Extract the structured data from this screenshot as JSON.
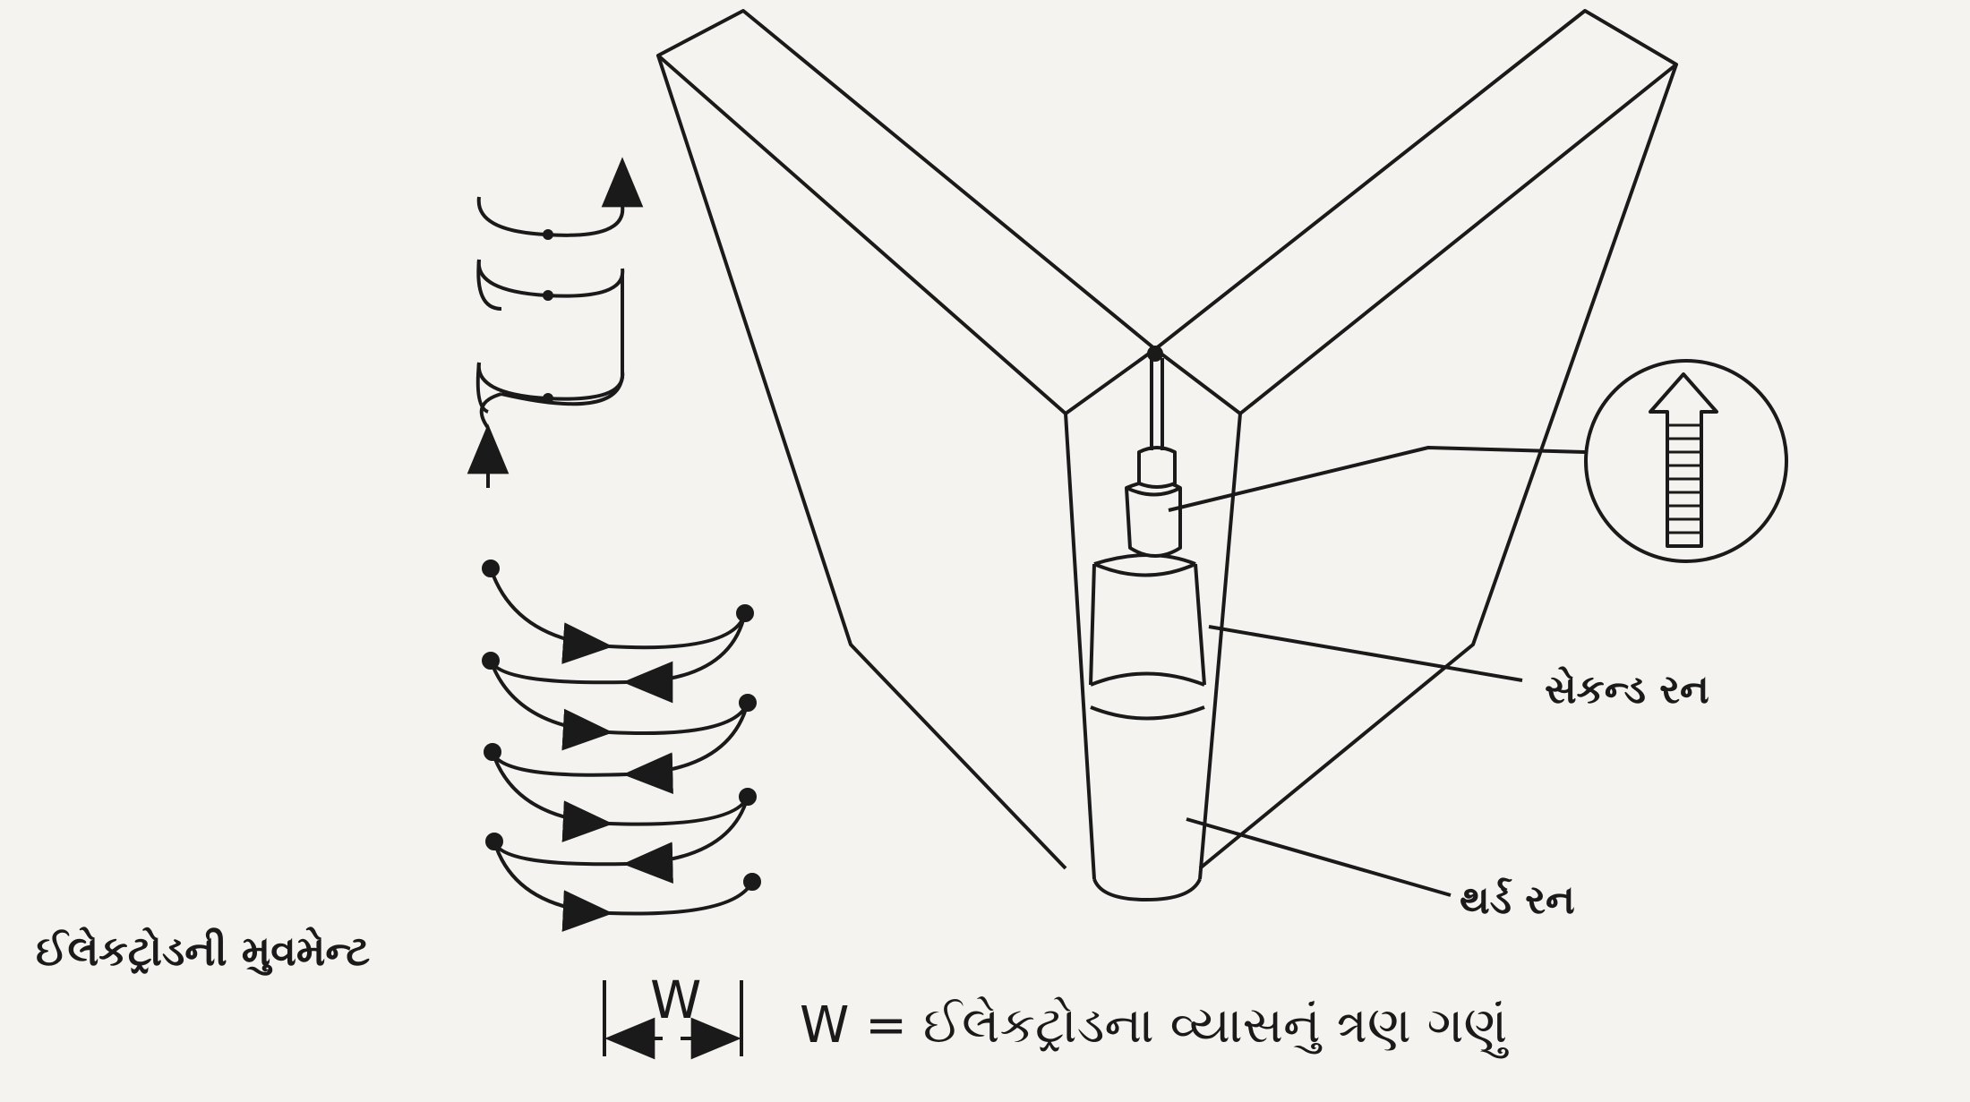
{
  "labels": {
    "electrode_movement": "ઈલેકટ્રોડની મુવમેન્ટ",
    "second_run": "સેકન્ડ રન",
    "third_run": "થર્ડ રન",
    "width_symbol": "W",
    "width_formula": "W = ઈલેકટ્રોડના વ્યાસનું ત્રણ ગણું"
  },
  "icons": {
    "weave_pattern_loops": "loop-weave-icon",
    "weave_pattern_zigzag": "zigzag-weave-icon",
    "travel_direction": "up-arrow-icon",
    "width_dimension": "dimension-arrows-icon"
  },
  "colors": {
    "ink": "#1a1a1a",
    "paper": "#f4f3ef"
  }
}
